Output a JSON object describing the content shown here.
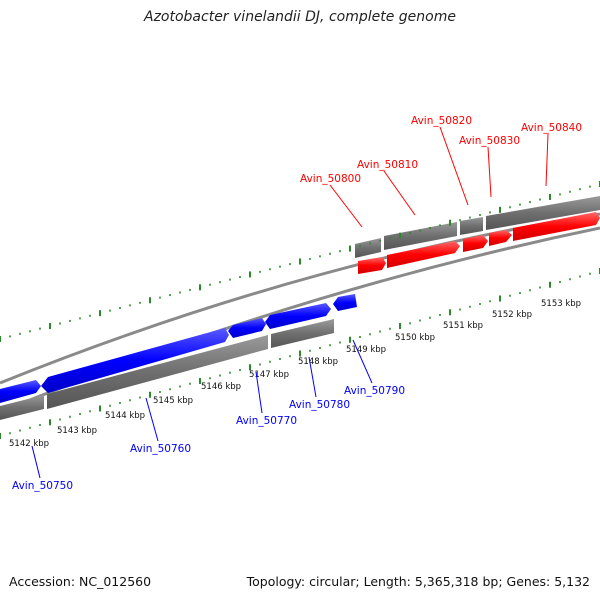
{
  "title": "Azotobacter vinelandii DJ, complete genome",
  "accession": "Accession: NC_012560",
  "summary": "Topology: circular; Length: 5,365,318 bp; Genes: 5,132",
  "colors": {
    "forward": "#ff0000",
    "reverse": "#0000ff",
    "backbone": "#777777",
    "ticks": "#2a8a2a"
  },
  "kbp_labels": [
    "5142 kbp",
    "5143 kbp",
    "5144 kbp",
    "5145 kbp",
    "5146 kbp",
    "5147 kbp",
    "5148 kbp",
    "5149 kbp",
    "5150 kbp",
    "5151 kbp",
    "5152 kbp",
    "5153 kbp"
  ],
  "forward_genes": [
    "Avin_50800",
    "Avin_50810",
    "Avin_50820",
    "Avin_50830",
    "Avin_50840"
  ],
  "reverse_genes": [
    "Avin_50750",
    "Avin_50760",
    "Avin_50770",
    "Avin_50780",
    "Avin_50790"
  ]
}
